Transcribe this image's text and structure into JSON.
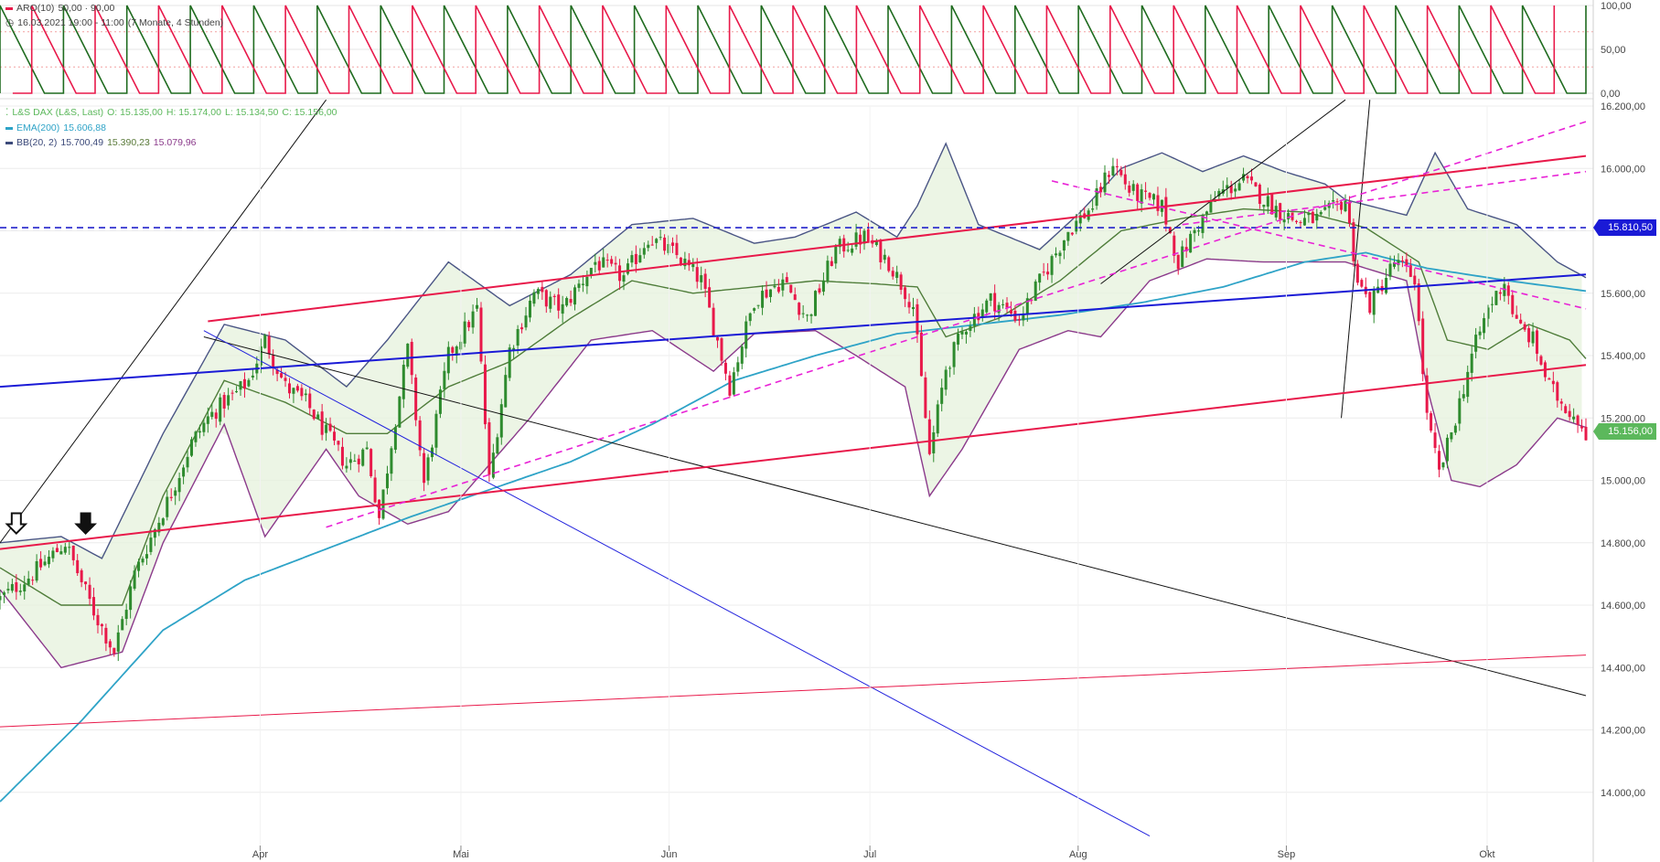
{
  "chart_data": [
    {
      "type": "line",
      "panel": "indicator",
      "title": "ARO(10)",
      "values_label": "50,00 · 90,00",
      "time_label": "16.03.2021 19:00 - 11:00",
      "range_label": "(7 Monate, 4 Stunden)",
      "ylim": [
        0,
        100
      ],
      "yticks": [
        "100,00",
        "50,00",
        "0,00"
      ],
      "series": [
        {
          "name": "Aroon Up",
          "color": "#1f6b1f"
        },
        {
          "name": "Aroon Down",
          "color": "#e8194a"
        }
      ],
      "cycles": 25
    },
    {
      "type": "candlestick",
      "panel": "price",
      "title": "L&S DAX (L&S, Last)",
      "ohlc_label": {
        "O": "O: 15.135,00",
        "H": "H: 15.174,00",
        "L": "L: 15.134,50",
        "C": "C: 15.156,00"
      },
      "ylim": [
        13850,
        16200
      ],
      "yticks": [
        "16.200,00",
        "16.000,00",
        "15.800,00",
        "15.600,00",
        "15.400,00",
        "15.200,00",
        "15.000,00",
        "14.800,00",
        "14.600,00",
        "14.400,00",
        "14.200,00",
        "14.000,00"
      ],
      "ytick_values": [
        16200,
        16000,
        15800,
        15600,
        15400,
        15200,
        15000,
        14800,
        14600,
        14400,
        14200,
        14000
      ],
      "x_labels": [
        "Apr",
        "Mai",
        "Jun",
        "Jul",
        "Aug",
        "Sep",
        "Okt"
      ],
      "indicators": [
        {
          "name": "EMA(200)",
          "value": "15.606,88",
          "color": "#2ea3c7"
        },
        {
          "name": "BB(20, 2)",
          "values": [
            "15.700,49",
            "15.390,23",
            "15.079,96"
          ],
          "color": "#7b4b8f"
        }
      ],
      "price_path": [
        [
          0,
          14620
        ],
        [
          8,
          14700
        ],
        [
          16,
          14800
        ],
        [
          23,
          14580
        ],
        [
          28,
          14450
        ],
        [
          33,
          14700
        ],
        [
          42,
          14960
        ],
        [
          47,
          15120
        ],
        [
          51,
          15200
        ],
        [
          55,
          15250
        ],
        [
          58,
          15280
        ],
        [
          61,
          15320
        ],
        [
          65,
          15450
        ],
        [
          70,
          15300
        ],
        [
          75,
          15250
        ],
        [
          80,
          15150
        ],
        [
          85,
          15050
        ],
        [
          90,
          15100
        ],
        [
          93,
          14880
        ],
        [
          97,
          15200
        ],
        [
          100,
          15420
        ],
        [
          104,
          14990
        ],
        [
          110,
          15400
        ],
        [
          117,
          15550
        ],
        [
          120,
          15000
        ],
        [
          125,
          15420
        ],
        [
          131,
          15600
        ],
        [
          138,
          15550
        ],
        [
          146,
          15700
        ],
        [
          153,
          15650
        ],
        [
          159,
          15780
        ],
        [
          166,
          15720
        ],
        [
          172,
          15640
        ],
        [
          179,
          15300
        ],
        [
          185,
          15580
        ],
        [
          192,
          15640
        ],
        [
          198,
          15520
        ],
        [
          205,
          15740
        ],
        [
          212,
          15780
        ],
        [
          218,
          15700
        ],
        [
          224,
          15560
        ],
        [
          228,
          15080
        ],
        [
          232,
          15360
        ],
        [
          237,
          15500
        ],
        [
          243,
          15580
        ],
        [
          250,
          15520
        ],
        [
          256,
          15660
        ],
        [
          262,
          15800
        ],
        [
          268,
          15880
        ],
        [
          273,
          16020
        ],
        [
          277,
          15930
        ],
        [
          281,
          15900
        ],
        [
          285,
          15880
        ],
        [
          289,
          15700
        ],
        [
          293,
          15800
        ],
        [
          299,
          15920
        ],
        [
          305,
          15960
        ],
        [
          312,
          15880
        ],
        [
          318,
          15830
        ],
        [
          324,
          15840
        ],
        [
          330,
          15900
        ],
        [
          333,
          15640
        ],
        [
          336,
          15560
        ],
        [
          342,
          15700
        ],
        [
          347,
          15650
        ],
        [
          350,
          15200
        ],
        [
          353,
          15020
        ],
        [
          357,
          15200
        ],
        [
          361,
          15400
        ],
        [
          365,
          15550
        ],
        [
          369,
          15640
        ],
        [
          372,
          15500
        ],
        [
          376,
          15450
        ],
        [
          380,
          15300
        ],
        [
          383,
          15250
        ],
        [
          387,
          15200
        ],
        [
          389,
          15156
        ]
      ],
      "ema200_path": [
        [
          0,
          13970
        ],
        [
          20,
          14230
        ],
        [
          40,
          14520
        ],
        [
          60,
          14680
        ],
        [
          80,
          14780
        ],
        [
          100,
          14880
        ],
        [
          120,
          14970
        ],
        [
          140,
          15060
        ],
        [
          160,
          15180
        ],
        [
          180,
          15320
        ],
        [
          200,
          15400
        ],
        [
          220,
          15470
        ],
        [
          240,
          15500
        ],
        [
          260,
          15530
        ],
        [
          280,
          15570
        ],
        [
          300,
          15620
        ],
        [
          320,
          15700
        ],
        [
          335,
          15730
        ],
        [
          350,
          15680
        ],
        [
          370,
          15640
        ],
        [
          389,
          15607
        ]
      ],
      "bb_upper_path": [
        [
          0,
          14800
        ],
        [
          15,
          14820
        ],
        [
          25,
          14750
        ],
        [
          40,
          15150
        ],
        [
          55,
          15500
        ],
        [
          70,
          15450
        ],
        [
          85,
          15300
        ],
        [
          95,
          15450
        ],
        [
          110,
          15700
        ],
        [
          125,
          15560
        ],
        [
          140,
          15660
        ],
        [
          155,
          15820
        ],
        [
          170,
          15840
        ],
        [
          185,
          15760
        ],
        [
          195,
          15780
        ],
        [
          210,
          15860
        ],
        [
          220,
          15780
        ],
        [
          225,
          15880
        ],
        [
          232,
          16080
        ],
        [
          240,
          15820
        ],
        [
          255,
          15740
        ],
        [
          265,
          15860
        ],
        [
          275,
          16000
        ],
        [
          285,
          16050
        ],
        [
          295,
          15990
        ],
        [
          305,
          16040
        ],
        [
          315,
          15990
        ],
        [
          325,
          15950
        ],
        [
          330,
          15900
        ],
        [
          345,
          15850
        ],
        [
          352,
          16050
        ],
        [
          360,
          15870
        ],
        [
          372,
          15820
        ],
        [
          382,
          15700
        ],
        [
          389,
          15650
        ]
      ],
      "bb_lower_path": [
        [
          0,
          14650
        ],
        [
          15,
          14400
        ],
        [
          30,
          14450
        ],
        [
          40,
          14800
        ],
        [
          55,
          15180
        ],
        [
          65,
          14820
        ],
        [
          80,
          15100
        ],
        [
          88,
          14950
        ],
        [
          100,
          14860
        ],
        [
          110,
          14900
        ],
        [
          120,
          15050
        ],
        [
          130,
          15200
        ],
        [
          145,
          15450
        ],
        [
          160,
          15480
        ],
        [
          175,
          15350
        ],
        [
          185,
          15470
        ],
        [
          200,
          15480
        ],
        [
          210,
          15400
        ],
        [
          222,
          15300
        ],
        [
          228,
          14950
        ],
        [
          236,
          15100
        ],
        [
          250,
          15420
        ],
        [
          262,
          15480
        ],
        [
          270,
          15460
        ],
        [
          282,
          15640
        ],
        [
          296,
          15710
        ],
        [
          310,
          15700
        ],
        [
          330,
          15700
        ],
        [
          345,
          15640
        ],
        [
          350,
          15300
        ],
        [
          356,
          15000
        ],
        [
          363,
          14980
        ],
        [
          372,
          15050
        ],
        [
          382,
          15200
        ],
        [
          389,
          15170
        ]
      ],
      "bb_mid_path": [
        [
          0,
          14720
        ],
        [
          15,
          14600
        ],
        [
          30,
          14600
        ],
        [
          40,
          14950
        ],
        [
          55,
          15320
        ],
        [
          70,
          15250
        ],
        [
          85,
          15150
        ],
        [
          95,
          15150
        ],
        [
          110,
          15300
        ],
        [
          125,
          15380
        ],
        [
          140,
          15520
        ],
        [
          155,
          15640
        ],
        [
          170,
          15600
        ],
        [
          185,
          15620
        ],
        [
          200,
          15640
        ],
        [
          215,
          15630
        ],
        [
          225,
          15620
        ],
        [
          232,
          15460
        ],
        [
          245,
          15520
        ],
        [
          260,
          15640
        ],
        [
          275,
          15800
        ],
        [
          290,
          15840
        ],
        [
          305,
          15870
        ],
        [
          320,
          15860
        ],
        [
          335,
          15810
        ],
        [
          348,
          15700
        ],
        [
          355,
          15450
        ],
        [
          365,
          15420
        ],
        [
          375,
          15500
        ],
        [
          385,
          15450
        ],
        [
          389,
          15390
        ]
      ],
      "trendlines": [
        {
          "color": "#111111",
          "width": 1,
          "dash": false,
          "from": [
            0,
            14800
          ],
          "to": [
            80,
            16220
          ]
        },
        {
          "color": "#111111",
          "width": 1,
          "dash": false,
          "from": [
            50,
            15460
          ],
          "to": [
            389,
            14310
          ]
        },
        {
          "color": "#2222dd",
          "width": 1,
          "dash": false,
          "from": [
            50,
            15480
          ],
          "to": [
            282,
            13860
          ]
        },
        {
          "color": "#111111",
          "width": 1,
          "dash": false,
          "from": [
            270,
            15630
          ],
          "to": [
            330,
            16220
          ]
        },
        {
          "color": "#111111",
          "width": 1,
          "dash": false,
          "from": [
            329,
            15200
          ],
          "to": [
            336,
            16220
          ]
        },
        {
          "color": "#1a1ad6",
          "width": 2,
          "dash": false,
          "from": [
            0,
            15300
          ],
          "to": [
            389,
            15660
          ]
        },
        {
          "color": "#e8194a",
          "width": 2,
          "dash": false,
          "from": [
            0,
            14780
          ],
          "to": [
            389,
            15370
          ]
        },
        {
          "color": "#e8194a",
          "width": 2,
          "dash": false,
          "from": [
            51,
            15510
          ],
          "to": [
            389,
            16040
          ]
        },
        {
          "color": "#e8194a",
          "width": 1,
          "dash": false,
          "from": [
            0,
            14210
          ],
          "to": [
            389,
            14440
          ]
        },
        {
          "color": "#2222cc",
          "width": 1.6,
          "dash": true,
          "from": [
            0,
            15810
          ],
          "to": [
            389,
            15810
          ]
        },
        {
          "color": "#e822d6",
          "width": 1.6,
          "dash": true,
          "from": [
            80,
            14850
          ],
          "to": [
            389,
            16150
          ]
        },
        {
          "color": "#e822d6",
          "width": 1.6,
          "dash": true,
          "from": [
            290,
            15820
          ],
          "to": [
            389,
            15990
          ]
        },
        {
          "color": "#e822d6",
          "width": 1.6,
          "dash": true,
          "from": [
            258,
            15960
          ],
          "to": [
            389,
            15550
          ]
        }
      ],
      "markers": [
        {
          "type": "arrow-down",
          "x": 4,
          "y": 14830,
          "style": "hollow"
        },
        {
          "type": "arrow-down",
          "x": 21,
          "y": 14830,
          "style": "filled"
        }
      ],
      "price_badges": [
        {
          "label": "15.810,50",
          "value": 15810.5,
          "color": "#1a1ad6"
        },
        {
          "label": "15.156,00",
          "value": 15156,
          "color": "#5cb85c"
        }
      ]
    }
  ]
}
